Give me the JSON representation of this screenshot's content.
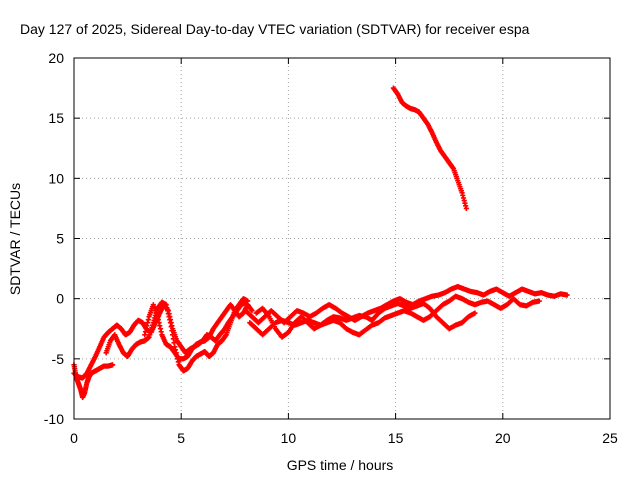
{
  "chart_data": {
    "type": "scatter",
    "title": "Day 127 of 2025, Sidereal Day-to-day VTEC variation (SDTVAR) for receiver espa",
    "xlabel": "GPS time / hours",
    "ylabel": "SDTVAR / TECUs",
    "xlim": [
      0,
      25
    ],
    "ylim": [
      -10,
      20
    ],
    "xticks": [
      "0",
      "5",
      "10",
      "15",
      "20",
      "25"
    ],
    "yticks": [
      "-10",
      "-5",
      "0",
      "5",
      "10",
      "15",
      "20"
    ],
    "xtick_values": [
      0,
      5,
      10,
      15,
      20,
      25
    ],
    "ytick_values": [
      -10,
      -5,
      0,
      5,
      10,
      15,
      20
    ],
    "grid": true,
    "marker": "+",
    "color": "#ff0000",
    "series": [
      {
        "name": "track-1",
        "points": [
          [
            0.0,
            -5.5
          ],
          [
            0.1,
            -6.5
          ],
          [
            0.2,
            -7.0
          ],
          [
            0.3,
            -7.5
          ],
          [
            0.4,
            -8.2
          ],
          [
            0.5,
            -7.8
          ],
          [
            0.6,
            -7.0
          ],
          [
            0.7,
            -6.5
          ],
          [
            0.8,
            -6.2
          ],
          [
            1.0,
            -6.0
          ],
          [
            1.2,
            -5.8
          ],
          [
            1.4,
            -5.6
          ],
          [
            1.6,
            -5.6
          ],
          [
            1.8,
            -5.5
          ]
        ]
      },
      {
        "name": "track-2",
        "points": [
          [
            0.0,
            -6.2
          ],
          [
            0.2,
            -6.5
          ],
          [
            0.4,
            -6.6
          ],
          [
            0.6,
            -6.2
          ],
          [
            0.8,
            -5.5
          ],
          [
            1.0,
            -4.8
          ],
          [
            1.2,
            -4.0
          ],
          [
            1.4,
            -3.2
          ],
          [
            1.6,
            -2.8
          ],
          [
            1.8,
            -2.5
          ],
          [
            2.0,
            -2.2
          ],
          [
            2.2,
            -2.5
          ],
          [
            2.4,
            -3.0
          ],
          [
            2.6,
            -2.8
          ],
          [
            2.8,
            -2.2
          ],
          [
            3.0,
            -1.8
          ],
          [
            3.2,
            -2.0
          ],
          [
            3.4,
            -2.6
          ],
          [
            3.6,
            -2.8
          ],
          [
            3.8,
            -2.0
          ],
          [
            4.0,
            -1.2
          ],
          [
            4.2,
            -0.5
          ],
          [
            4.4,
            -1.0
          ],
          [
            4.6,
            -2.5
          ],
          [
            4.8,
            -3.5
          ],
          [
            5.0,
            -4.0
          ],
          [
            5.2,
            -4.5
          ],
          [
            5.4,
            -4.2
          ],
          [
            5.6,
            -4.0
          ],
          [
            5.8,
            -3.8
          ],
          [
            6.0,
            -3.5
          ],
          [
            6.2,
            -3.0
          ],
          [
            6.4,
            -3.2
          ],
          [
            6.6,
            -3.5
          ],
          [
            6.8,
            -3.0
          ],
          [
            7.0,
            -2.6
          ],
          [
            7.2,
            -2.0
          ],
          [
            7.4,
            -1.5
          ],
          [
            7.6,
            -1.0
          ],
          [
            7.8,
            -0.5
          ],
          [
            8.0,
            -0.3
          ]
        ]
      },
      {
        "name": "track-3",
        "points": [
          [
            1.5,
            -4.5
          ],
          [
            1.7,
            -3.5
          ],
          [
            1.9,
            -3.0
          ],
          [
            2.1,
            -3.8
          ],
          [
            2.3,
            -4.5
          ],
          [
            2.5,
            -4.8
          ],
          [
            2.7,
            -4.2
          ],
          [
            2.9,
            -3.8
          ],
          [
            3.1,
            -3.6
          ],
          [
            3.3,
            -3.5
          ],
          [
            3.5,
            -3.2
          ],
          [
            3.7,
            -2.0
          ],
          [
            3.9,
            -0.8
          ],
          [
            4.1,
            -0.3
          ],
          [
            4.3,
            -0.5
          ],
          [
            4.5,
            -2.0
          ],
          [
            4.7,
            -4.0
          ],
          [
            4.9,
            -5.5
          ],
          [
            5.1,
            -6.0
          ],
          [
            5.3,
            -5.8
          ],
          [
            5.5,
            -5.2
          ],
          [
            5.7,
            -4.8
          ],
          [
            5.9,
            -4.6
          ],
          [
            6.1,
            -4.4
          ],
          [
            6.3,
            -4.8
          ],
          [
            6.5,
            -4.5
          ],
          [
            6.7,
            -3.8
          ],
          [
            6.9,
            -3.5
          ],
          [
            7.1,
            -3.0
          ],
          [
            7.3,
            -2.0
          ],
          [
            7.5,
            -1.0
          ],
          [
            7.7,
            -0.5
          ],
          [
            7.9,
            0.0
          ],
          [
            8.1,
            -0.2
          ]
        ]
      },
      {
        "name": "track-4",
        "points": [
          [
            3.3,
            -3.0
          ],
          [
            3.5,
            -1.5
          ],
          [
            3.7,
            -0.5
          ],
          [
            3.9,
            -1.5
          ],
          [
            4.1,
            -3.0
          ],
          [
            4.3,
            -3.8
          ],
          [
            4.5,
            -4.0
          ],
          [
            4.7,
            -4.5
          ],
          [
            4.9,
            -5.0
          ],
          [
            5.1,
            -5.0
          ],
          [
            5.3,
            -4.8
          ],
          [
            5.5,
            -4.2
          ],
          [
            5.7,
            -3.8
          ],
          [
            5.9,
            -3.6
          ],
          [
            6.1,
            -3.5
          ],
          [
            6.3,
            -3.2
          ],
          [
            6.5,
            -2.5
          ],
          [
            6.7,
            -2.0
          ],
          [
            6.9,
            -1.5
          ],
          [
            7.1,
            -1.0
          ],
          [
            7.3,
            -0.5
          ],
          [
            7.5,
            -1.0
          ],
          [
            7.7,
            -1.5
          ],
          [
            7.9,
            -1.2
          ],
          [
            8.1,
            -0.5
          ],
          [
            8.3,
            -1.0
          ]
        ]
      },
      {
        "name": "track-5",
        "points": [
          [
            8.0,
            -1.0
          ],
          [
            8.3,
            -1.5
          ],
          [
            8.6,
            -2.0
          ],
          [
            8.9,
            -1.5
          ],
          [
            9.2,
            -1.0
          ],
          [
            9.5,
            -1.5
          ],
          [
            9.8,
            -2.0
          ],
          [
            10.1,
            -1.5
          ],
          [
            10.4,
            -1.0
          ],
          [
            10.7,
            -1.2
          ],
          [
            11.0,
            -1.5
          ],
          [
            11.3,
            -1.2
          ],
          [
            11.6,
            -0.8
          ],
          [
            11.9,
            -0.5
          ],
          [
            12.2,
            -0.8
          ],
          [
            12.5,
            -1.2
          ],
          [
            12.8,
            -1.5
          ],
          [
            13.1,
            -1.8
          ],
          [
            13.4,
            -1.5
          ],
          [
            13.7,
            -1.2
          ],
          [
            14.0,
            -1.0
          ],
          [
            14.3,
            -0.8
          ],
          [
            14.6,
            -0.5
          ],
          [
            14.9,
            -0.2
          ],
          [
            15.2,
            0.0
          ],
          [
            15.5,
            -0.3
          ],
          [
            15.8,
            -0.5
          ],
          [
            16.1,
            -0.2
          ],
          [
            16.4,
            0.0
          ],
          [
            16.7,
            0.2
          ],
          [
            17.0,
            0.3
          ],
          [
            17.3,
            0.5
          ],
          [
            17.6,
            0.8
          ],
          [
            17.9,
            1.0
          ],
          [
            18.2,
            0.8
          ],
          [
            18.5,
            0.6
          ],
          [
            18.8,
            0.5
          ],
          [
            19.1,
            0.3
          ],
          [
            19.4,
            0.6
          ],
          [
            19.7,
            0.8
          ],
          [
            20.0,
            0.5
          ],
          [
            20.3,
            0.2
          ],
          [
            20.6,
            0.5
          ],
          [
            20.9,
            0.8
          ],
          [
            21.2,
            0.6
          ],
          [
            21.5,
            0.4
          ],
          [
            21.8,
            0.5
          ],
          [
            22.1,
            0.3
          ],
          [
            22.4,
            0.2
          ],
          [
            22.7,
            0.4
          ],
          [
            23.0,
            0.3
          ]
        ]
      },
      {
        "name": "track-6",
        "points": [
          [
            8.2,
            -2.0
          ],
          [
            8.5,
            -2.5
          ],
          [
            8.8,
            -3.0
          ],
          [
            9.1,
            -2.5
          ],
          [
            9.4,
            -2.0
          ],
          [
            9.7,
            -1.8
          ],
          [
            10.0,
            -2.0
          ],
          [
            10.3,
            -2.2
          ],
          [
            10.6,
            -2.0
          ],
          [
            10.9,
            -1.8
          ],
          [
            11.2,
            -2.0
          ],
          [
            11.5,
            -2.2
          ],
          [
            11.8,
            -2.0
          ],
          [
            12.1,
            -1.8
          ],
          [
            12.4,
            -2.0
          ],
          [
            12.7,
            -2.5
          ],
          [
            13.0,
            -2.8
          ],
          [
            13.3,
            -3.0
          ],
          [
            13.6,
            -2.6
          ],
          [
            13.9,
            -2.2
          ],
          [
            14.2,
            -2.0
          ],
          [
            14.5,
            -1.6
          ],
          [
            14.8,
            -1.4
          ],
          [
            15.1,
            -1.2
          ],
          [
            15.4,
            -1.0
          ],
          [
            15.7,
            -1.2
          ],
          [
            16.0,
            -1.5
          ],
          [
            16.3,
            -1.8
          ],
          [
            16.6,
            -1.5
          ],
          [
            16.9,
            -1.0
          ],
          [
            17.2,
            -0.5
          ],
          [
            17.5,
            -0.2
          ],
          [
            17.8,
            0.2
          ],
          [
            18.1,
            0.0
          ],
          [
            18.4,
            -0.3
          ],
          [
            18.7,
            -0.5
          ],
          [
            19.0,
            -0.3
          ],
          [
            19.3,
            -0.2
          ],
          [
            19.6,
            -0.5
          ],
          [
            19.9,
            -0.8
          ],
          [
            20.2,
            -0.5
          ],
          [
            20.5,
            0.0
          ],
          [
            20.8,
            -0.5
          ],
          [
            21.1,
            -0.6
          ],
          [
            21.4,
            -0.3
          ],
          [
            21.7,
            -0.2
          ]
        ]
      },
      {
        "name": "track-7",
        "points": [
          [
            8.5,
            -1.2
          ],
          [
            8.8,
            -0.8
          ],
          [
            9.1,
            -1.5
          ],
          [
            9.4,
            -2.5
          ],
          [
            9.7,
            -3.2
          ],
          [
            10.0,
            -2.8
          ],
          [
            10.3,
            -2.0
          ],
          [
            10.6,
            -1.5
          ],
          [
            10.9,
            -2.0
          ],
          [
            11.2,
            -2.5
          ],
          [
            11.5,
            -2.2
          ],
          [
            11.8,
            -1.8
          ],
          [
            12.1,
            -1.5
          ],
          [
            12.4,
            -1.6
          ],
          [
            12.7,
            -1.8
          ],
          [
            13.0,
            -1.6
          ],
          [
            13.3,
            -1.4
          ],
          [
            13.6,
            -1.5
          ],
          [
            13.9,
            -1.8
          ],
          [
            14.2,
            -1.2
          ],
          [
            14.5,
            -0.8
          ],
          [
            14.8,
            -0.6
          ],
          [
            15.1,
            -0.4
          ],
          [
            15.4,
            -0.6
          ],
          [
            15.7,
            -0.8
          ],
          [
            16.0,
            -0.6
          ],
          [
            16.3,
            -0.4
          ],
          [
            16.6,
            -0.8
          ],
          [
            16.9,
            -1.5
          ],
          [
            17.2,
            -2.0
          ],
          [
            17.5,
            -2.5
          ],
          [
            17.8,
            -2.2
          ],
          [
            18.1,
            -2.0
          ],
          [
            18.4,
            -1.5
          ],
          [
            18.7,
            -1.2
          ]
        ]
      },
      {
        "name": "track-8",
        "points": [
          [
            14.9,
            17.5
          ],
          [
            15.1,
            17.0
          ],
          [
            15.3,
            16.3
          ],
          [
            15.5,
            16.0
          ],
          [
            15.7,
            15.8
          ],
          [
            15.9,
            15.7
          ],
          [
            16.1,
            15.5
          ],
          [
            16.3,
            15.0
          ],
          [
            16.5,
            14.5
          ],
          [
            16.7,
            13.8
          ],
          [
            16.9,
            13.0
          ],
          [
            17.1,
            12.3
          ],
          [
            17.3,
            11.8
          ],
          [
            17.5,
            11.3
          ],
          [
            17.7,
            10.8
          ],
          [
            17.9,
            9.8
          ],
          [
            18.1,
            8.8
          ],
          [
            18.3,
            7.5
          ]
        ]
      }
    ]
  }
}
